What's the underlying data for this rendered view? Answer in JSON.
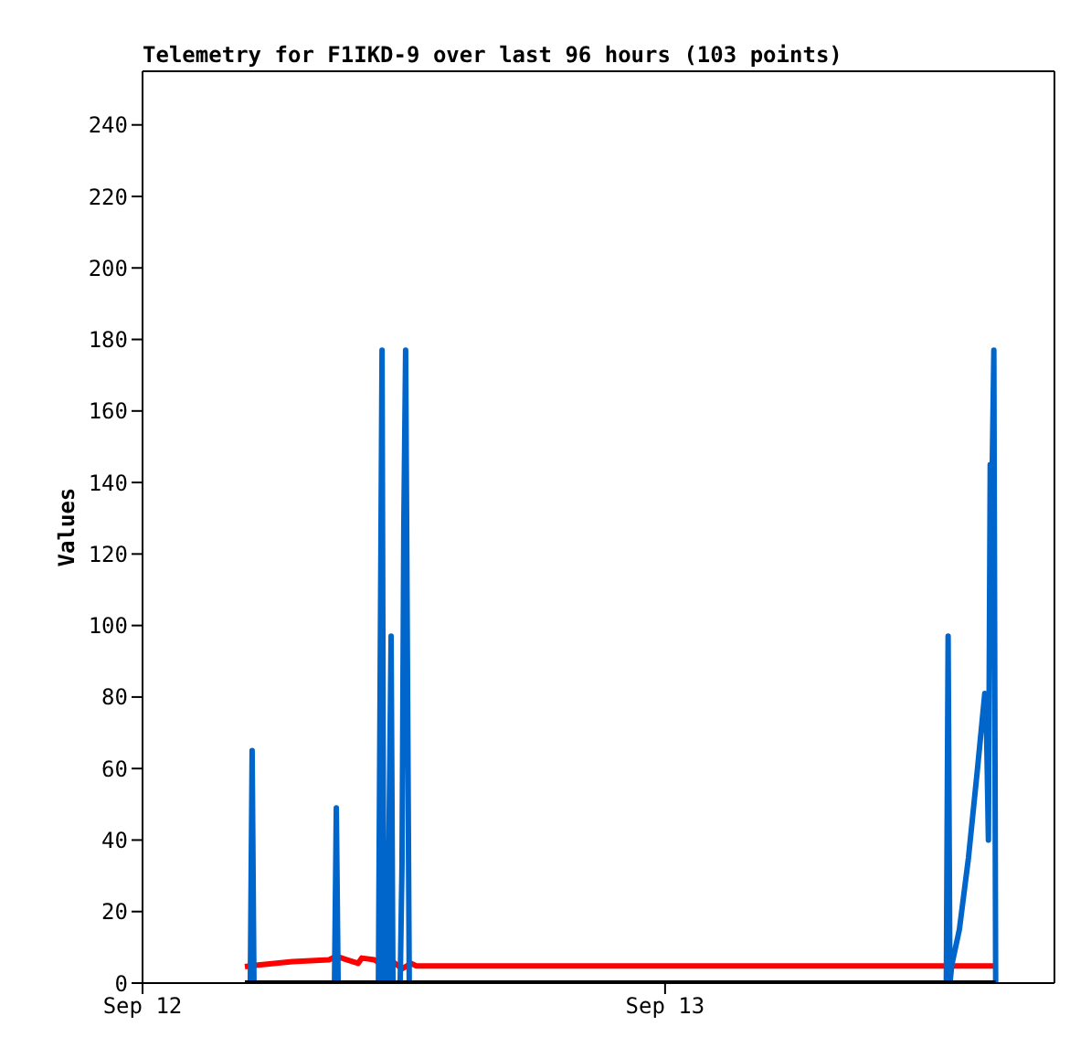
{
  "chart_data": {
    "type": "line",
    "title": "Telemetry for F1IKD-9 over last 96 hours (103 points)",
    "ylabel": "Values",
    "xlim": [
      "--09-12T00:00",
      "--09-13T17:53"
    ],
    "xticks": [
      {
        "value": "--09-12",
        "label": "Sep 12"
      },
      {
        "value": "--09-13",
        "label": "Sep 13"
      }
    ],
    "ylim": [
      0,
      255
    ],
    "yticks": [
      0,
      20,
      40,
      60,
      80,
      100,
      120,
      140,
      160,
      180,
      200,
      220,
      240
    ],
    "marker": "none",
    "line_style": "solid",
    "series": [
      {
        "color": "#ff0000",
        "x": [
          "--09-12T04:42",
          "--09-12T05:12",
          "--09-12T06:53",
          "--09-12T08:34",
          "--09-12T08:54",
          "--09-12T09:24",
          "--09-12T09:54",
          "--09-12T10:04",
          "--09-12T10:39",
          "--09-12T11:10",
          "--09-12T11:30",
          "--09-12T11:55",
          "--09-12T12:20",
          "--09-12T12:35",
          "--09-13T15:11"
        ],
        "values": [
          4.6,
          5,
          6,
          6.5,
          7.5,
          6.5,
          5.5,
          7,
          6.5,
          4.5,
          6,
          4,
          5.5,
          4.8,
          4.8
        ]
      },
      {
        "color": "#0066cc",
        "x": [
          "--09-12T04:57",
          "--09-12T05:02",
          "--09-12T05:07",
          "--09-12T08:49",
          "--09-12T08:54",
          "--09-12T08:59",
          "--09-12T10:50",
          "--09-12T10:55",
          "--09-12T11:00",
          "--09-12T11:05",
          "--09-12T11:15",
          "--09-12T11:20",
          "--09-12T11:25",
          "--09-12T11:30",
          "--09-12T11:50",
          "--09-12T11:55",
          "--09-12T12:00",
          "--09-12T12:05",
          "--09-12T12:10",
          "--09-12T12:15",
          "--09-13T12:55",
          "--09-13T13:00",
          "--09-13T13:05",
          "--09-13T13:10",
          "--09-13T13:31",
          "--09-13T13:56",
          "--09-13T14:21",
          "--09-13T14:41",
          "--09-13T14:46",
          "--09-13T14:51",
          "--09-13T14:56",
          "--09-13T15:01",
          "--09-13T15:06",
          "--09-13T15:11"
        ],
        "values": [
          0,
          65,
          0,
          0,
          49,
          0,
          0,
          89,
          177,
          0,
          0,
          49,
          97,
          0,
          0,
          33,
          128,
          177,
          89,
          0,
          0,
          97,
          0,
          5,
          15,
          35,
          60,
          81,
          70,
          40,
          145,
          140,
          177,
          0
        ]
      },
      {
        "color": "#000000",
        "x": [
          "--09-12T04:42",
          "--09-13T15:11"
        ],
        "values": [
          0,
          0
        ]
      }
    ]
  }
}
